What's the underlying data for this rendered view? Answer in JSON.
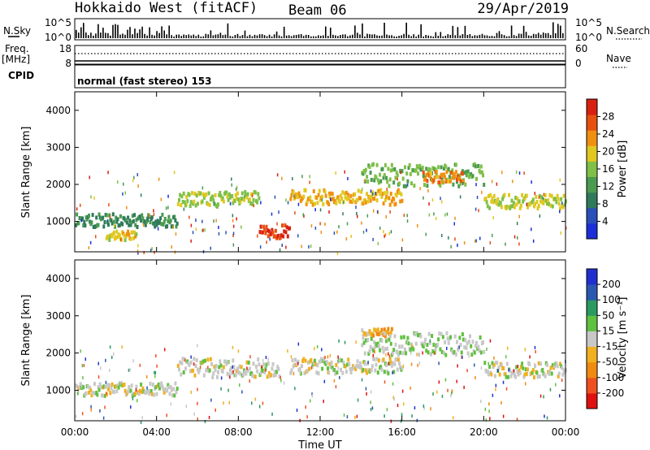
{
  "header": {
    "station": "Hokkaido West (fitACF)",
    "beam": "Beam 06",
    "date": "29/Apr/2019"
  },
  "status_panel": {
    "nsky_label": "N.Sky",
    "nsky_top": "10^5",
    "nsky_bottom": "10^0",
    "nsearch_label": "N.Search",
    "nsearch_top": "10^5",
    "nsearch_bottom": "10^0",
    "freq_label": "Freq.",
    "freq_unit": "[MHz]",
    "freq_top": "18",
    "freq_bottom": "8",
    "nave_label": "Nave",
    "nave_top": "60",
    "nave_bottom": "0",
    "cpid_label": "CPID",
    "cpid_text": "normal (fast stereo) 153"
  },
  "colors": {
    "power": [
      "#1a2fd8",
      "#2a4fb8",
      "#2f7a5a",
      "#4a9a50",
      "#7fc048",
      "#e0c820",
      "#f09010",
      "#e85010",
      "#d82010"
    ],
    "velocity": [
      "#e01010",
      "#f05020",
      "#f08a10",
      "#f0b020",
      "#c8c8c8",
      "#60c040",
      "#2a9a60",
      "#2a58b0",
      "#2030d0"
    ]
  },
  "chart_data": [
    {
      "type": "heatmap",
      "title": "",
      "parameter": "Power",
      "xlabel": "",
      "ylabel": "Slant Range [km]",
      "xlim": [
        "00:00",
        "24:00"
      ],
      "ylim": [
        180,
        4500
      ],
      "y_ticks": [
        "1000",
        "2000",
        "3000",
        "4000"
      ],
      "colorbar_label": "Power [dB]",
      "colorbar_ticks": [
        "4",
        "8",
        "12",
        "16",
        "20",
        "24",
        "28"
      ],
      "colorbar_range": [
        0,
        30
      ],
      "bands": [
        {
          "start": "00:00",
          "end": "05:00",
          "range_km": [
            900,
            1250
          ],
          "power_db": 10
        },
        {
          "start": "01:30",
          "end": "03:00",
          "range_km": [
            550,
            800
          ],
          "power_db": 18
        },
        {
          "start": "05:00",
          "end": "09:00",
          "range_km": [
            1450,
            1850
          ],
          "power_db": 16
        },
        {
          "start": "09:00",
          "end": "10:30",
          "range_km": [
            600,
            950
          ],
          "power_db": 26
        },
        {
          "start": "10:30",
          "end": "16:00",
          "range_km": [
            1500,
            1900
          ],
          "power_db": 20
        },
        {
          "start": "14:00",
          "end": "20:00",
          "range_km": [
            2000,
            2600
          ],
          "power_db": 14
        },
        {
          "start": "17:00",
          "end": "19:00",
          "range_km": [
            2100,
            2400
          ],
          "power_db": 22
        },
        {
          "start": "20:00",
          "end": "24:00",
          "range_km": [
            1400,
            1800
          ],
          "power_db": 17
        }
      ]
    },
    {
      "type": "heatmap",
      "title": "",
      "parameter": "Velocity",
      "xlabel": "Time UT",
      "ylabel": "Slant Range [km]",
      "xlim": [
        "00:00",
        "24:00"
      ],
      "x_ticks": [
        "00:00",
        "04:00",
        "08:00",
        "12:00",
        "16:00",
        "20:00",
        "00:00"
      ],
      "ylim": [
        180,
        4500
      ],
      "y_ticks": [
        "1000",
        "2000",
        "3000",
        "4000"
      ],
      "colorbar_label": "Velocity [m s⁻¹]",
      "colorbar_ticks": [
        "200",
        "100",
        "50",
        "15",
        "-15",
        "-50",
        "-100",
        "-200"
      ],
      "colorbar_range": [
        -250,
        250
      ],
      "bands": [
        {
          "start": "00:00",
          "end": "05:00",
          "range_km": [
            900,
            1250
          ],
          "velocity_ms": 0
        },
        {
          "start": "05:00",
          "end": "10:00",
          "range_km": [
            1400,
            1900
          ],
          "velocity_ms": 0
        },
        {
          "start": "10:30",
          "end": "16:00",
          "range_km": [
            1500,
            1900
          ],
          "velocity_ms": 0
        },
        {
          "start": "14:00",
          "end": "15:30",
          "range_km": [
            2500,
            2700
          ],
          "velocity_ms": -60
        },
        {
          "start": "14:00",
          "end": "20:00",
          "range_km": [
            2000,
            2600
          ],
          "velocity_ms": 20
        },
        {
          "start": "20:00",
          "end": "24:00",
          "range_km": [
            1400,
            1800
          ],
          "velocity_ms": 0
        }
      ]
    }
  ]
}
